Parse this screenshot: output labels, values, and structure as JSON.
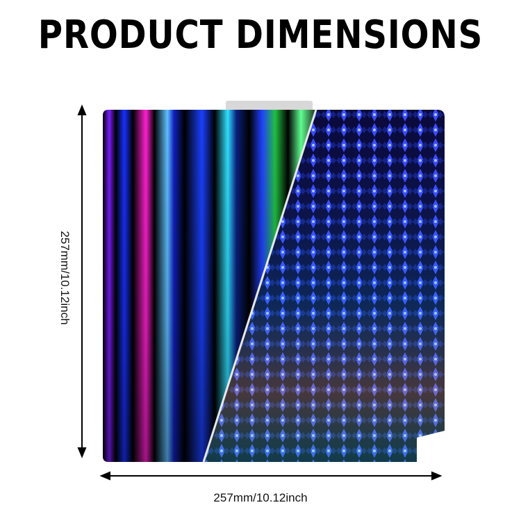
{
  "title": "PRODUCT DIMENSIONS",
  "height_label": "257mm/10.12inch",
  "width_label": "257mm/10.12inch",
  "colors": {
    "text": "#000000",
    "plate_dark": "#050510",
    "pattern_blue": "#2a3cff"
  }
}
